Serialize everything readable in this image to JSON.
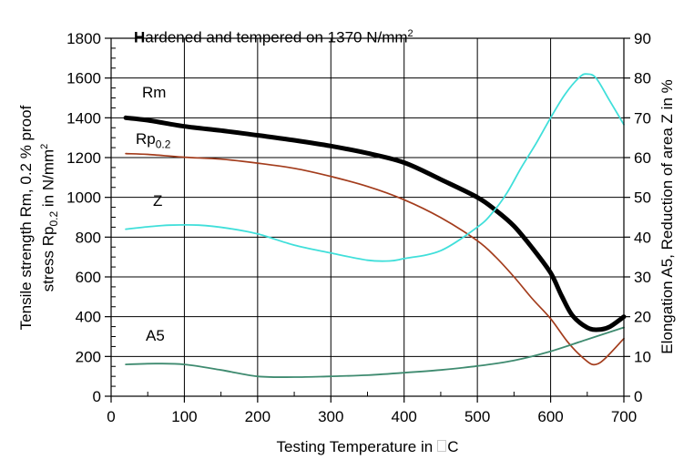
{
  "figure": {
    "annotation": {
      "bold_first": "H",
      "rest": "ardened and tempered on 1370 N/mm",
      "sup": "2"
    },
    "x_axis": {
      "label_prefix": "Testing Temperature in",
      "label_unit": "C",
      "ticks": [
        0,
        100,
        200,
        300,
        400,
        500,
        600,
        700
      ],
      "minor_step": 50
    },
    "y_axis_left": {
      "line1": "Tensile strength Rm, 0.2 % proof",
      "l2_prefix": "stress Rp",
      "l2_sub": "0.2",
      "l2_mid": " in N/mm",
      "l2_sup": "2",
      "ticks": [
        0,
        200,
        400,
        600,
        800,
        1000,
        1200,
        1400,
        1600,
        1800
      ],
      "minor_step": 50
    },
    "y_axis_right": {
      "label": "Elongation A5, Reduction of area Z in %",
      "ticks": [
        0,
        10,
        20,
        30,
        40,
        50,
        60,
        70,
        80,
        90
      ]
    },
    "series_labels": {
      "rm": "Rm",
      "rp_prefix": "Rp",
      "rp_sub": "0.2",
      "z": "Z",
      "a5": "A5"
    }
  },
  "chart_data": {
    "type": "line",
    "title": "Hardened and tempered on 1370 N/mm²",
    "xlabel": "Testing Temperature in °C",
    "ylabel_left": "Tensile strength Rm, 0.2 % proof stress Rp0.2 in N/mm²",
    "ylabel_right": "Elongation A5, Reduction of area Z in %",
    "x_range": [
      0,
      700
    ],
    "y_left_range": [
      0,
      1800
    ],
    "y_right_range": [
      0,
      90
    ],
    "grid": true,
    "axis_color": "#000000",
    "series": [
      {
        "name": "Rm",
        "axis": "left",
        "color": "#000000",
        "width": 5,
        "points": [
          [
            20,
            1400
          ],
          [
            50,
            1388
          ],
          [
            100,
            1357
          ],
          [
            150,
            1336
          ],
          [
            200,
            1312
          ],
          [
            250,
            1287
          ],
          [
            300,
            1258
          ],
          [
            350,
            1222
          ],
          [
            400,
            1175
          ],
          [
            450,
            1090
          ],
          [
            500,
            1000
          ],
          [
            525,
            935
          ],
          [
            550,
            855
          ],
          [
            575,
            745
          ],
          [
            600,
            620
          ],
          [
            615,
            505
          ],
          [
            630,
            405
          ],
          [
            650,
            345
          ],
          [
            665,
            335
          ],
          [
            680,
            348
          ],
          [
            700,
            400
          ]
        ]
      },
      {
        "name": "Rp0.2",
        "axis": "left",
        "color": "#a33c1c",
        "width": 1.7,
        "points": [
          [
            20,
            1220
          ],
          [
            50,
            1216
          ],
          [
            100,
            1202
          ],
          [
            150,
            1192
          ],
          [
            200,
            1172
          ],
          [
            250,
            1146
          ],
          [
            300,
            1105
          ],
          [
            350,
            1055
          ],
          [
            400,
            988
          ],
          [
            450,
            898
          ],
          [
            500,
            782
          ],
          [
            525,
            700
          ],
          [
            550,
            600
          ],
          [
            575,
            490
          ],
          [
            600,
            390
          ],
          [
            625,
            265
          ],
          [
            650,
            175
          ],
          [
            662,
            160
          ],
          [
            675,
            192
          ],
          [
            700,
            290
          ]
        ]
      },
      {
        "name": "Z",
        "axis": "right",
        "color": "#40dfda",
        "width": 1.8,
        "points": [
          [
            20,
            42
          ],
          [
            50,
            42.6
          ],
          [
            80,
            43
          ],
          [
            120,
            43
          ],
          [
            160,
            42.2
          ],
          [
            200,
            40.8
          ],
          [
            250,
            38
          ],
          [
            300,
            36
          ],
          [
            350,
            34.2
          ],
          [
            380,
            34
          ],
          [
            400,
            34.6
          ],
          [
            450,
            36.6
          ],
          [
            500,
            42.5
          ],
          [
            520,
            46
          ],
          [
            540,
            51
          ],
          [
            560,
            57.5
          ],
          [
            580,
            63.5
          ],
          [
            600,
            70
          ],
          [
            620,
            76
          ],
          [
            640,
            80.3
          ],
          [
            650,
            81
          ],
          [
            662,
            80
          ],
          [
            680,
            74.5
          ],
          [
            700,
            68.3
          ]
        ]
      },
      {
        "name": "A5",
        "axis": "right",
        "color": "#3f8b70",
        "width": 1.8,
        "points": [
          [
            20,
            8
          ],
          [
            60,
            8.2
          ],
          [
            100,
            8
          ],
          [
            150,
            6.6
          ],
          [
            200,
            5
          ],
          [
            250,
            4.8
          ],
          [
            300,
            5
          ],
          [
            350,
            5.3
          ],
          [
            400,
            5.9
          ],
          [
            450,
            6.6
          ],
          [
            500,
            7.6
          ],
          [
            550,
            9
          ],
          [
            600,
            11.3
          ],
          [
            650,
            14.3
          ],
          [
            700,
            17.3
          ]
        ]
      }
    ]
  }
}
